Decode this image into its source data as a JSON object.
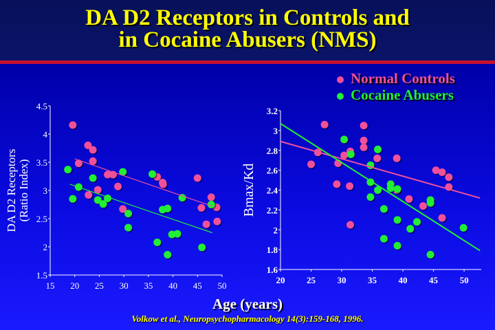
{
  "slide": {
    "title_line1": "DA D2 Receptors in Controls and",
    "title_line2": "in Cocaine Abusers (NMS)",
    "x_axis_label": "Age (years)",
    "citation": "Volkow et al., Neuropsychopharmacology 14(3):159-168, 1996.",
    "colors": {
      "title": "#ffff00",
      "divider": "#c8102e",
      "normal": "#f0509a",
      "cocaine": "#22ee33"
    }
  },
  "legend": [
    {
      "label": "Normal Controls",
      "color": "#f0509a"
    },
    {
      "label": "Cocaine Abusers",
      "color": "#22ee33"
    }
  ],
  "chart_data": [
    {
      "type": "scatter",
      "ylabel_line1": "DA D2 Receptors",
      "ylabel_line2": "(Ratio Index)",
      "xlim": [
        15,
        50
      ],
      "ylim": [
        1.5,
        4.5
      ],
      "xticks": [
        "15",
        "20",
        "25",
        "30",
        "35",
        "40",
        "45",
        "50"
      ],
      "yticks": [
        "1.5",
        "2",
        "2.5",
        "3",
        "3.5",
        "4",
        "4.5"
      ],
      "series": [
        {
          "name": "Normal Controls",
          "color": "#f0509a",
          "points": [
            [
              19.6,
              4.16
            ],
            [
              20.8,
              3.48
            ],
            [
              22.7,
              3.8
            ],
            [
              23.7,
              3.72
            ],
            [
              23.7,
              3.52
            ],
            [
              22.8,
              2.92
            ],
            [
              24.7,
              3.01
            ],
            [
              26.7,
              3.28
            ],
            [
              27.8,
              3.28
            ],
            [
              28.8,
              3.07
            ],
            [
              29.8,
              2.67
            ],
            [
              36.8,
              3.24
            ],
            [
              37.9,
              3.14
            ],
            [
              38,
              3.11
            ],
            [
              45,
              3.22
            ],
            [
              45.8,
              2.69
            ],
            [
              47.8,
              2.88
            ],
            [
              48.9,
              2.7
            ],
            [
              46.8,
              2.4
            ],
            [
              49,
              2.45
            ]
          ],
          "fit": [
            [
              20,
              3.56
            ],
            [
              48,
              2.72
            ]
          ]
        },
        {
          "name": "Cocaine Abusers",
          "color": "#22ee33",
          "points": [
            [
              18.6,
              3.37
            ],
            [
              19.6,
              2.85
            ],
            [
              20.8,
              3.06
            ],
            [
              23.7,
              3.22
            ],
            [
              24.7,
              2.83
            ],
            [
              25.8,
              2.76
            ],
            [
              26.7,
              2.86
            ],
            [
              29.8,
              3.33
            ],
            [
              30.9,
              2.59
            ],
            [
              30.9,
              2.34
            ],
            [
              35.8,
              3.29
            ],
            [
              36.8,
              2.08
            ],
            [
              37.9,
              2.66
            ],
            [
              38.9,
              2.68
            ],
            [
              38.9,
              1.86
            ],
            [
              39.8,
              2.22
            ],
            [
              40.9,
              2.23
            ],
            [
              41.9,
              2.87
            ],
            [
              45.9,
              1.99
            ],
            [
              47.8,
              2.75
            ]
          ],
          "fit": [
            [
              19,
              3.11
            ],
            [
              48,
              2.25
            ]
          ]
        }
      ]
    },
    {
      "type": "scatter",
      "ylabel_line1": "Bmax/Kd",
      "xlim": [
        20,
        52.8
      ],
      "ylim": [
        1.6,
        3.2
      ],
      "xticks": [
        "20",
        "25",
        "30",
        "35",
        "40",
        "45",
        "50"
      ],
      "yticks": [
        "1.6",
        "1.8",
        "2",
        "2.2",
        "2.4",
        "2.6",
        "2.8",
        "3",
        "3.2"
      ],
      "series": [
        {
          "name": "Normal Controls",
          "color": "#f0509a",
          "points": [
            [
              25,
              2.66
            ],
            [
              26.1,
              2.78
            ],
            [
              27.2,
              3.06
            ],
            [
              29.4,
              2.67
            ],
            [
              29.2,
              2.46
            ],
            [
              30.4,
              2.75
            ],
            [
              31.4,
              2.79
            ],
            [
              31.3,
              2.44
            ],
            [
              31.4,
              2.05
            ],
            [
              33.6,
              3.05
            ],
            [
              33.6,
              2.9
            ],
            [
              33.6,
              2.83
            ],
            [
              35.8,
              2.72
            ],
            [
              39,
              2.72
            ],
            [
              39,
              2.4
            ],
            [
              41,
              2.31
            ],
            [
              43.3,
              2.24
            ],
            [
              45.4,
              2.6
            ],
            [
              46.4,
              2.58
            ],
            [
              47.5,
              2.53
            ],
            [
              47.5,
              2.43
            ],
            [
              46.4,
              2.12
            ]
          ],
          "fit": [
            [
              20,
              2.89
            ],
            [
              52.6,
              2.32
            ]
          ]
        },
        {
          "name": "Cocaine Abusers",
          "color": "#22ee33",
          "points": [
            [
              30.4,
              2.91
            ],
            [
              31.5,
              2.76
            ],
            [
              35.9,
              2.81
            ],
            [
              34.7,
              2.65
            ],
            [
              34.7,
              2.48
            ],
            [
              34.7,
              2.33
            ],
            [
              35.9,
              2.4
            ],
            [
              36.9,
              2.21
            ],
            [
              36.9,
              1.91
            ],
            [
              38,
              2.46
            ],
            [
              38,
              2.42
            ],
            [
              39.1,
              2.41
            ],
            [
              39.1,
              2.1
            ],
            [
              39.1,
              1.84
            ],
            [
              41.2,
              2.01
            ],
            [
              42.3,
              2.08
            ],
            [
              44.5,
              2.3
            ],
            [
              44.5,
              2.27
            ],
            [
              44.5,
              1.75
            ],
            [
              49.9,
              2.02
            ]
          ],
          "fit": [
            [
              20,
              3.07
            ],
            [
              52.6,
              1.79
            ]
          ]
        }
      ]
    }
  ]
}
